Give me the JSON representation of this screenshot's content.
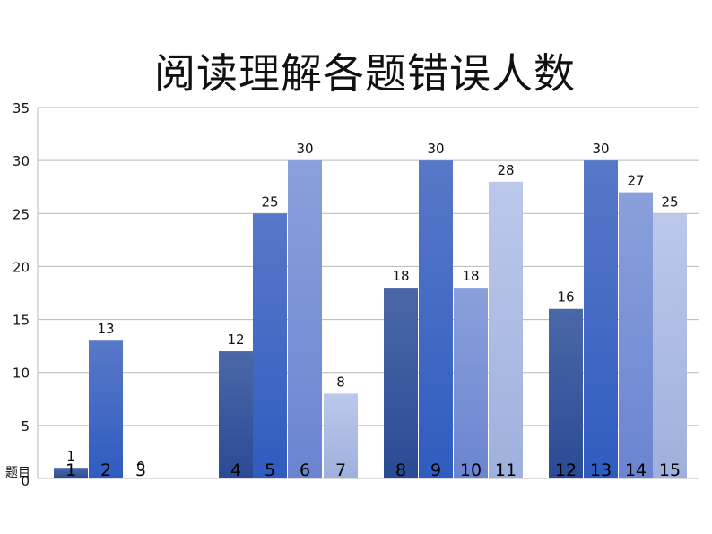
{
  "chart_data": {
    "type": "bar",
    "title": "阅读理解各题错误人数",
    "xlabel": "题目",
    "ylabel": "",
    "ylim": [
      0,
      35
    ],
    "yticks": [
      0,
      5,
      10,
      15,
      20,
      25,
      30,
      35
    ],
    "grid": true,
    "legend": "none",
    "categories": [
      "1",
      "2",
      "3",
      "4",
      "5",
      "6",
      "7",
      "8",
      "9",
      "10",
      "11",
      "12",
      "13",
      "14",
      "15"
    ],
    "values": [
      1,
      13,
      0,
      12,
      25,
      30,
      8,
      18,
      30,
      18,
      28,
      16,
      30,
      27,
      25
    ],
    "colors": {
      "shade_1_top": "#4a68a8",
      "shade_1_bottom": "#2a4a94",
      "shade_2_top": "#5878c8",
      "shade_2_bottom": "#2f5cc0",
      "shade_3_top": "#8aa0dc",
      "shade_3_bottom": "#6a84d0",
      "shade_4_top": "#bcc8ea",
      "shade_4_bottom": "#9fb0de",
      "grid": "#b8b8b8",
      "text": "#111111"
    }
  }
}
